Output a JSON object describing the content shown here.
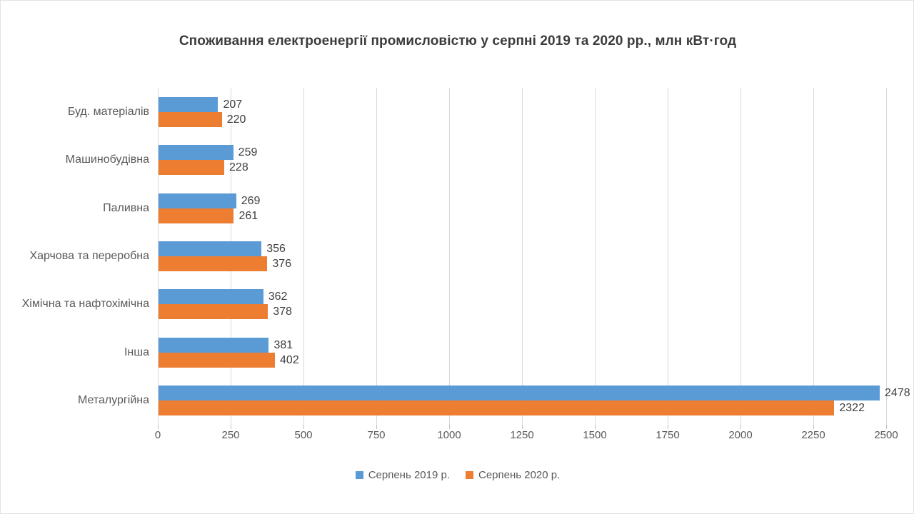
{
  "title": "Споживання електроенергії промисловістю у серпні 2019 та 2020 рр., млн кВт·год",
  "chart_data": {
    "type": "bar",
    "orientation": "horizontal",
    "title": "Споживання електроенергії промисловістю у серпні 2019 та 2020 рр., млн кВт·год",
    "categories": [
      "Буд. матеріалів",
      "Машинобудівна",
      "Паливна",
      "Харчова та переробна",
      "Хімічна та нафтохімічна",
      "Інша",
      "Металургійна"
    ],
    "series": [
      {
        "name": "Серпень 2019 р.",
        "color": "#5b9bd5",
        "values": [
          207,
          259,
          269,
          356,
          362,
          381,
          2478
        ]
      },
      {
        "name": "Серпень 2020 р.",
        "color": "#ed7d31",
        "values": [
          220,
          228,
          261,
          376,
          378,
          402,
          2322
        ]
      }
    ],
    "x_axis": {
      "min": 0,
      "max": 2500,
      "tick_step": 250,
      "ticks": [
        "0",
        "250",
        "500",
        "750",
        "1000",
        "1250",
        "1500",
        "1750",
        "2000",
        "2250",
        "2500"
      ]
    },
    "grid": true,
    "data_labels": true,
    "legend_position": "bottom"
  },
  "colors": {
    "gridline": "#d9d9d9",
    "axis_tick": "#bfbfbf",
    "title_text": "#3b3b3b",
    "label_text": "#404040",
    "axis_text": "#595959",
    "background": "#ffffff"
  }
}
